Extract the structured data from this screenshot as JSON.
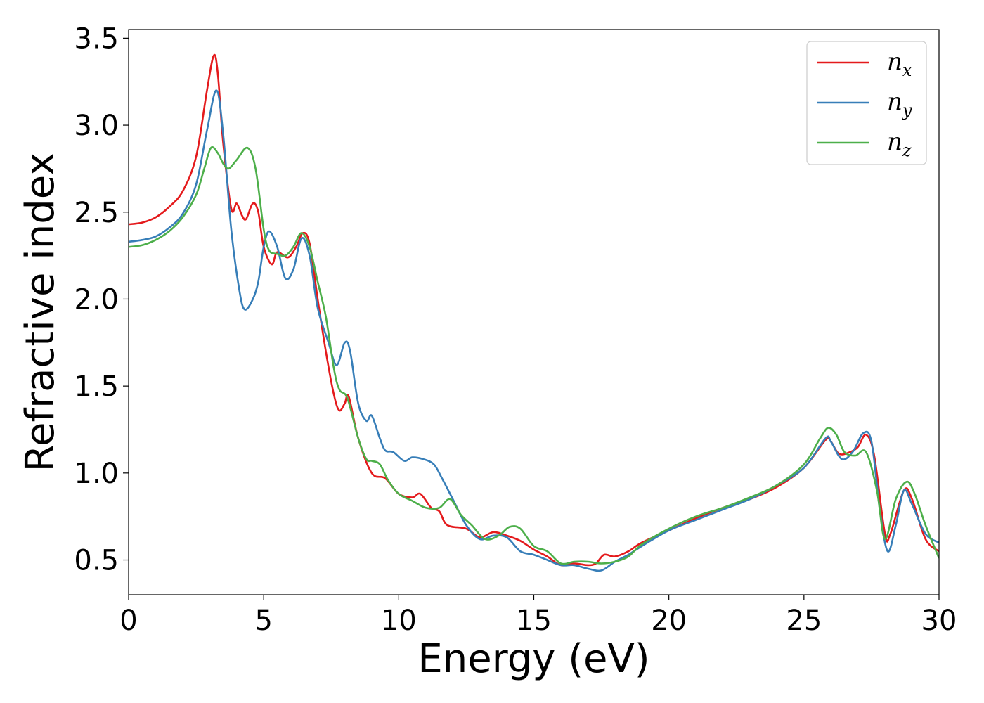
{
  "chart_data": {
    "type": "line",
    "xlabel": "Energy (eV)",
    "ylabel": "Refractive index",
    "xlim": [
      0,
      30
    ],
    "ylim": [
      0.3,
      3.55
    ],
    "xticks": [
      "0",
      "5",
      "10",
      "15",
      "20",
      "25",
      "30"
    ],
    "yticks": [
      "0.5",
      "1.0",
      "1.5",
      "2.0",
      "2.5",
      "3.0",
      "3.5"
    ],
    "grid": false,
    "legend_position": "top-right",
    "series": [
      {
        "name": "n",
        "subscript": "x",
        "color": "#e41a1c",
        "points": [
          [
            0,
            2.43
          ],
          [
            0.5,
            2.44
          ],
          [
            1,
            2.47
          ],
          [
            1.5,
            2.53
          ],
          [
            2,
            2.62
          ],
          [
            2.5,
            2.82
          ],
          [
            2.9,
            3.2
          ],
          [
            3.15,
            3.4
          ],
          [
            3.3,
            3.3
          ],
          [
            3.5,
            2.9
          ],
          [
            3.8,
            2.52
          ],
          [
            4.0,
            2.55
          ],
          [
            4.2,
            2.48
          ],
          [
            4.35,
            2.46
          ],
          [
            4.6,
            2.55
          ],
          [
            4.8,
            2.5
          ],
          [
            5.0,
            2.3
          ],
          [
            5.3,
            2.2
          ],
          [
            5.5,
            2.27
          ],
          [
            5.9,
            2.24
          ],
          [
            6.2,
            2.3
          ],
          [
            6.45,
            2.38
          ],
          [
            6.7,
            2.32
          ],
          [
            7.0,
            2.0
          ],
          [
            7.3,
            1.7
          ],
          [
            7.6,
            1.45
          ],
          [
            7.8,
            1.36
          ],
          [
            8.0,
            1.4
          ],
          [
            8.15,
            1.44
          ],
          [
            8.5,
            1.2
          ],
          [
            9.0,
            1.0
          ],
          [
            9.5,
            0.97
          ],
          [
            10.0,
            0.88
          ],
          [
            10.5,
            0.86
          ],
          [
            10.8,
            0.88
          ],
          [
            11.2,
            0.8
          ],
          [
            11.5,
            0.78
          ],
          [
            11.8,
            0.7
          ],
          [
            12.5,
            0.68
          ],
          [
            13.0,
            0.63
          ],
          [
            13.5,
            0.66
          ],
          [
            14.0,
            0.64
          ],
          [
            14.5,
            0.61
          ],
          [
            15.0,
            0.56
          ],
          [
            15.5,
            0.52
          ],
          [
            16.0,
            0.47
          ],
          [
            16.5,
            0.48
          ],
          [
            17.0,
            0.47
          ],
          [
            17.3,
            0.48
          ],
          [
            17.6,
            0.53
          ],
          [
            18.0,
            0.52
          ],
          [
            18.5,
            0.55
          ],
          [
            19.0,
            0.6
          ],
          [
            20.0,
            0.67
          ],
          [
            21.0,
            0.74
          ],
          [
            22.0,
            0.8
          ],
          [
            23.0,
            0.85
          ],
          [
            24.0,
            0.92
          ],
          [
            25.0,
            1.03
          ],
          [
            25.8,
            1.19
          ],
          [
            26.0,
            1.18
          ],
          [
            26.3,
            1.11
          ],
          [
            26.7,
            1.12
          ],
          [
            27.0,
            1.15
          ],
          [
            27.3,
            1.22
          ],
          [
            27.6,
            1.1
          ],
          [
            28.0,
            0.65
          ],
          [
            28.2,
            0.65
          ],
          [
            28.7,
            0.9
          ],
          [
            29.0,
            0.85
          ],
          [
            29.5,
            0.62
          ],
          [
            30,
            0.55
          ]
        ]
      },
      {
        "name": "n",
        "subscript": "y",
        "color": "#377eb8",
        "points": [
          [
            0,
            2.33
          ],
          [
            0.5,
            2.34
          ],
          [
            1,
            2.36
          ],
          [
            1.5,
            2.41
          ],
          [
            2,
            2.49
          ],
          [
            2.5,
            2.66
          ],
          [
            2.9,
            2.97
          ],
          [
            3.25,
            3.2
          ],
          [
            3.5,
            2.95
          ],
          [
            3.8,
            2.4
          ],
          [
            4.1,
            2.05
          ],
          [
            4.3,
            1.94
          ],
          [
            4.6,
            2.0
          ],
          [
            4.8,
            2.1
          ],
          [
            5.0,
            2.3
          ],
          [
            5.2,
            2.39
          ],
          [
            5.5,
            2.3
          ],
          [
            5.8,
            2.12
          ],
          [
            6.1,
            2.17
          ],
          [
            6.4,
            2.35
          ],
          [
            6.7,
            2.25
          ],
          [
            7.0,
            1.95
          ],
          [
            7.4,
            1.75
          ],
          [
            7.7,
            1.62
          ],
          [
            8.0,
            1.75
          ],
          [
            8.2,
            1.7
          ],
          [
            8.5,
            1.4
          ],
          [
            8.8,
            1.3
          ],
          [
            9.0,
            1.33
          ],
          [
            9.3,
            1.2
          ],
          [
            9.5,
            1.13
          ],
          [
            9.8,
            1.12
          ],
          [
            10.2,
            1.07
          ],
          [
            10.5,
            1.09
          ],
          [
            10.9,
            1.08
          ],
          [
            11.3,
            1.05
          ],
          [
            11.6,
            0.97
          ],
          [
            12.0,
            0.85
          ],
          [
            12.5,
            0.7
          ],
          [
            13.0,
            0.62
          ],
          [
            13.5,
            0.64
          ],
          [
            14.0,
            0.63
          ],
          [
            14.5,
            0.55
          ],
          [
            15.0,
            0.53
          ],
          [
            15.5,
            0.5
          ],
          [
            16.0,
            0.47
          ],
          [
            16.5,
            0.47
          ],
          [
            17.0,
            0.45
          ],
          [
            17.5,
            0.44
          ],
          [
            18.0,
            0.49
          ],
          [
            18.5,
            0.53
          ],
          [
            19.0,
            0.58
          ],
          [
            20.0,
            0.67
          ],
          [
            21.0,
            0.73
          ],
          [
            22.0,
            0.79
          ],
          [
            23.0,
            0.85
          ],
          [
            24.0,
            0.93
          ],
          [
            25.0,
            1.03
          ],
          [
            25.8,
            1.2
          ],
          [
            26.0,
            1.18
          ],
          [
            26.4,
            1.08
          ],
          [
            26.8,
            1.12
          ],
          [
            27.2,
            1.23
          ],
          [
            27.5,
            1.18
          ],
          [
            27.8,
            0.8
          ],
          [
            28.1,
            0.55
          ],
          [
            28.4,
            0.7
          ],
          [
            28.7,
            0.9
          ],
          [
            29.0,
            0.82
          ],
          [
            29.5,
            0.65
          ],
          [
            30,
            0.6
          ]
        ]
      },
      {
        "name": "n",
        "subscript": "z",
        "color": "#4daf4a",
        "points": [
          [
            0,
            2.3
          ],
          [
            0.5,
            2.31
          ],
          [
            1,
            2.34
          ],
          [
            1.5,
            2.39
          ],
          [
            2,
            2.47
          ],
          [
            2.5,
            2.6
          ],
          [
            2.8,
            2.75
          ],
          [
            3.05,
            2.87
          ],
          [
            3.3,
            2.84
          ],
          [
            3.5,
            2.78
          ],
          [
            3.7,
            2.75
          ],
          [
            4.0,
            2.8
          ],
          [
            4.4,
            2.87
          ],
          [
            4.7,
            2.75
          ],
          [
            5.0,
            2.4
          ],
          [
            5.2,
            2.28
          ],
          [
            5.5,
            2.26
          ],
          [
            5.8,
            2.25
          ],
          [
            6.1,
            2.3
          ],
          [
            6.4,
            2.38
          ],
          [
            6.7,
            2.3
          ],
          [
            7.0,
            2.1
          ],
          [
            7.3,
            1.9
          ],
          [
            7.6,
            1.6
          ],
          [
            7.8,
            1.48
          ],
          [
            8.1,
            1.43
          ],
          [
            8.5,
            1.2
          ],
          [
            8.8,
            1.08
          ],
          [
            9.0,
            1.07
          ],
          [
            9.3,
            1.05
          ],
          [
            9.6,
            0.96
          ],
          [
            10.0,
            0.88
          ],
          [
            10.5,
            0.84
          ],
          [
            11.0,
            0.8
          ],
          [
            11.5,
            0.8
          ],
          [
            11.9,
            0.85
          ],
          [
            12.3,
            0.76
          ],
          [
            12.7,
            0.7
          ],
          [
            13.2,
            0.62
          ],
          [
            13.7,
            0.64
          ],
          [
            14.1,
            0.69
          ],
          [
            14.5,
            0.68
          ],
          [
            15.0,
            0.58
          ],
          [
            15.5,
            0.55
          ],
          [
            16.0,
            0.48
          ],
          [
            16.5,
            0.49
          ],
          [
            17.0,
            0.49
          ],
          [
            17.5,
            0.48
          ],
          [
            18.0,
            0.49
          ],
          [
            18.5,
            0.52
          ],
          [
            19.0,
            0.59
          ],
          [
            20.0,
            0.68
          ],
          [
            21.0,
            0.75
          ],
          [
            22.0,
            0.8
          ],
          [
            23.0,
            0.86
          ],
          [
            24.0,
            0.93
          ],
          [
            25.0,
            1.05
          ],
          [
            25.6,
            1.2
          ],
          [
            25.9,
            1.26
          ],
          [
            26.2,
            1.22
          ],
          [
            26.5,
            1.12
          ],
          [
            26.9,
            1.1
          ],
          [
            27.3,
            1.12
          ],
          [
            27.7,
            0.9
          ],
          [
            28.0,
            0.62
          ],
          [
            28.4,
            0.85
          ],
          [
            28.8,
            0.95
          ],
          [
            29.1,
            0.88
          ],
          [
            29.5,
            0.7
          ],
          [
            30,
            0.51
          ]
        ]
      }
    ]
  }
}
